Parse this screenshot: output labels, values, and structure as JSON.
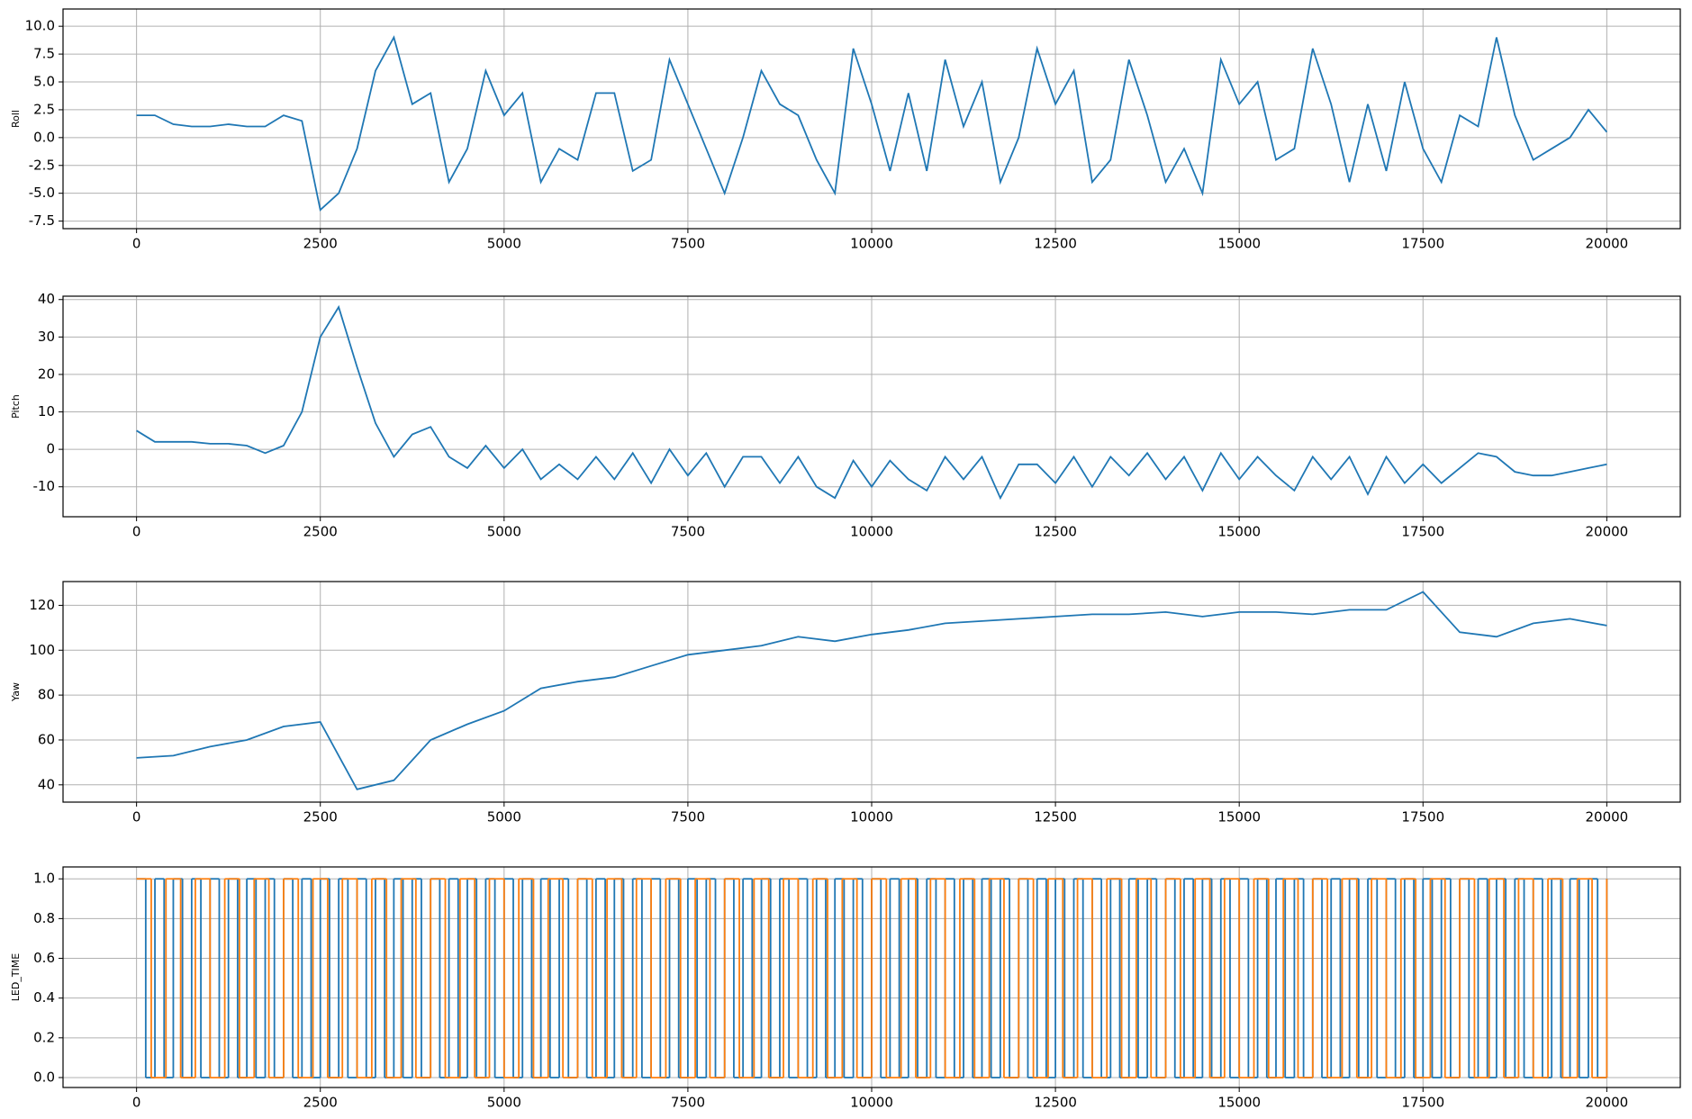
{
  "chart_data": [
    {
      "type": "line",
      "ylabel": "Roll",
      "grid": true,
      "xlim": [
        -1000,
        21000
      ],
      "xticks": [
        0,
        2500,
        5000,
        7500,
        10000,
        12500,
        15000,
        17500,
        20000
      ],
      "ylim": [
        -8.18,
        11.55
      ],
      "yticks": [
        {
          "value": -7.5,
          "label": "-7.5"
        },
        {
          "value": -5,
          "label": "-5.0"
        },
        {
          "value": -2.5,
          "label": "-2.5"
        },
        {
          "value": 0,
          "label": "0.0"
        },
        2.5,
        {
          "value": 5,
          "label": "5.0"
        },
        7.5,
        {
          "value": 10,
          "label": "10.0"
        }
      ],
      "series": [
        {
          "color": "#1f77b4",
          "x": [
            0,
            250,
            500,
            750,
            1000,
            1250,
            1500,
            1750,
            2000,
            2250,
            2500,
            2750,
            3000,
            3250,
            3500,
            3750,
            4000,
            4250,
            4500,
            4750,
            5000,
            5250,
            5500,
            5750,
            6000,
            6250,
            6500,
            6750,
            7000,
            7250,
            7500,
            7750,
            8000,
            8250,
            8500,
            8750,
            9000,
            9250,
            9500,
            9750,
            10000,
            10250,
            10500,
            10750,
            11000,
            11250,
            11500,
            11750,
            12000,
            12250,
            12500,
            12750,
            13000,
            13250,
            13500,
            13750,
            14000,
            14250,
            14500,
            14750,
            15000,
            15250,
            15500,
            15750,
            16000,
            16250,
            16500,
            16750,
            17000,
            17250,
            17500,
            17750,
            18000,
            18250,
            18500,
            18750,
            19000,
            19250,
            19500,
            19750,
            20000
          ],
          "values": [
            2,
            2,
            1.2,
            1,
            1,
            1.2,
            1,
            1,
            2,
            1.5,
            -6.5,
            -5,
            -1,
            6,
            9,
            3,
            4,
            -4,
            -1,
            6,
            2,
            4,
            -4,
            -1,
            -2,
            4,
            4,
            -3,
            -2,
            7,
            3,
            -1,
            -5,
            0,
            6,
            3,
            2,
            -2,
            -5,
            8,
            3,
            -3,
            4,
            -3,
            7,
            1,
            5,
            -4,
            0,
            8,
            3,
            6,
            -4,
            -2,
            7,
            2,
            -4,
            -1,
            -5,
            7,
            3,
            5,
            -2,
            -1,
            8,
            3,
            -4,
            3,
            -3,
            5,
            -1,
            -4,
            2,
            1,
            9,
            2,
            -2,
            -1,
            0,
            2.5,
            0.5
          ]
        }
      ]
    },
    {
      "type": "line",
      "ylabel": "Pitch",
      "grid": true,
      "xlim": [
        -1000,
        21000
      ],
      "xticks": [
        0,
        2500,
        5000,
        7500,
        10000,
        12500,
        15000,
        17500,
        20000
      ],
      "ylim": [
        -18,
        40.9
      ],
      "yticks": [
        -10,
        0,
        10,
        20,
        30,
        40
      ],
      "series": [
        {
          "color": "#1f77b4",
          "x": [
            0,
            250,
            500,
            750,
            1000,
            1250,
            1500,
            1750,
            2000,
            2250,
            2500,
            2750,
            3000,
            3250,
            3500,
            3750,
            4000,
            4250,
            4500,
            4750,
            5000,
            5250,
            5500,
            5750,
            6000,
            6250,
            6500,
            6750,
            7000,
            7250,
            7500,
            7750,
            8000,
            8250,
            8500,
            8750,
            9000,
            9250,
            9500,
            9750,
            10000,
            10250,
            10500,
            10750,
            11000,
            11250,
            11500,
            11750,
            12000,
            12250,
            12500,
            12750,
            13000,
            13250,
            13500,
            13750,
            14000,
            14250,
            14500,
            14750,
            15000,
            15250,
            15500,
            15750,
            16000,
            16250,
            16500,
            16750,
            17000,
            17250,
            17500,
            17750,
            18000,
            18250,
            18500,
            18750,
            19000,
            19250,
            19500,
            19750,
            20000
          ],
          "values": [
            5,
            2,
            2,
            2,
            1.5,
            1.5,
            1,
            -1,
            1,
            10,
            30,
            38,
            22,
            7,
            -2,
            4,
            6,
            -2,
            -5,
            1,
            -5,
            0,
            -8,
            -4,
            -8,
            -2,
            -8,
            -1,
            -9,
            0,
            -7,
            -1,
            -10,
            -2,
            -2,
            -9,
            -2,
            -10,
            -13,
            -3,
            -10,
            -3,
            -8,
            -11,
            -2,
            -8,
            -2,
            -13,
            -4,
            -4,
            -9,
            -2,
            -10,
            -2,
            -7,
            -1,
            -8,
            -2,
            -11,
            -1,
            -8,
            -2,
            -7,
            -11,
            -2,
            -8,
            -2,
            -12,
            -2,
            -9,
            -4,
            -9,
            -5,
            -1,
            -2,
            -6,
            -7,
            -7,
            -6,
            -5,
            -4
          ]
        }
      ]
    },
    {
      "type": "line",
      "ylabel": "Yaw",
      "grid": true,
      "xlim": [
        -1000,
        21000
      ],
      "xticks": [
        0,
        2500,
        5000,
        7500,
        10000,
        12500,
        15000,
        17500,
        20000
      ],
      "ylim": [
        32.3,
        130.6
      ],
      "yticks": [
        40,
        60,
        80,
        100,
        120
      ],
      "series": [
        {
          "color": "#1f77b4",
          "x": [
            0,
            500,
            1000,
            1500,
            2000,
            2500,
            3000,
            3500,
            4000,
            4500,
            5000,
            5500,
            6000,
            6500,
            7000,
            7500,
            8000,
            8500,
            9000,
            9500,
            10000,
            10500,
            11000,
            11500,
            12000,
            12500,
            13000,
            13500,
            14000,
            14500,
            15000,
            15500,
            16000,
            16500,
            17000,
            17500,
            18000,
            18500,
            19000,
            19500,
            20000
          ],
          "values": [
            52,
            53,
            57,
            60,
            66,
            68,
            38,
            42,
            60,
            67,
            73,
            83,
            86,
            88,
            93,
            98,
            100,
            102,
            106,
            104,
            107,
            109,
            112,
            113,
            114,
            115,
            116,
            116,
            117,
            115,
            117,
            117,
            116,
            118,
            118,
            126,
            108,
            106,
            112,
            114,
            111
          ]
        }
      ]
    },
    {
      "type": "step",
      "ylabel": "LED_TIME",
      "grid": true,
      "xlim": [
        -1000,
        21000
      ],
      "xticks": [
        0,
        2500,
        5000,
        7500,
        10000,
        12500,
        15000,
        17500,
        20000
      ],
      "ylim": [
        -0.05,
        1.06
      ],
      "yticks": [
        {
          "value": 0,
          "label": "0.0"
        },
        0.2,
        0.4,
        0.6,
        0.8,
        {
          "value": 1,
          "label": "1.0"
        }
      ],
      "series": [
        {
          "color": "#1f77b4",
          "x": [
            0,
            125,
            250,
            375,
            500,
            625,
            750,
            875,
            1000,
            1125,
            1250,
            1375,
            1500,
            1625,
            1750,
            1875,
            2000,
            2125,
            2250,
            2375,
            2500,
            2625,
            2750,
            2875,
            3000,
            3125,
            3250,
            3375,
            3500,
            3625,
            3750,
            3875,
            4000,
            4125,
            4250,
            4375,
            4500,
            4625,
            4750,
            4875,
            5000,
            5125,
            5250,
            5375,
            5500,
            5625,
            5750,
            5875,
            6000,
            6125,
            6250,
            6375,
            6500,
            6625,
            6750,
            6875,
            7000,
            7125,
            7250,
            7375,
            7500,
            7625,
            7750,
            7875,
            8000,
            8125,
            8250,
            8375,
            8500,
            8625,
            8750,
            8875,
            9000,
            9125,
            9250,
            9375,
            9500,
            9625,
            9750,
            9875,
            10000,
            10125,
            10250,
            10375,
            10500,
            10625,
            10750,
            10875,
            11000,
            11125,
            11250,
            11375,
            11500,
            11625,
            11750,
            11875,
            12000,
            12125,
            12250,
            12375,
            12500,
            12625,
            12750,
            12875,
            13000,
            13125,
            13250,
            13375,
            13500,
            13625,
            13750,
            13875,
            14000,
            14125,
            14250,
            14375,
            14500,
            14625,
            14750,
            14875,
            15000,
            15125,
            15250,
            15375,
            15500,
            15625,
            15750,
            15875,
            16000,
            16125,
            16250,
            16375,
            16500,
            16625,
            16750,
            16875,
            17000,
            17125,
            17250,
            17375,
            17500,
            17625,
            17750,
            17875,
            18000,
            18125,
            18250,
            18375,
            18500,
            18625,
            18750,
            18875,
            19000,
            19125,
            19250,
            19375,
            19500,
            19625,
            19750,
            19875,
            20000
          ],
          "values": [
            1,
            0,
            1,
            0,
            1,
            0,
            1,
            0,
            1,
            0,
            1,
            0,
            1,
            0,
            1,
            0,
            1,
            0,
            1,
            0,
            1,
            0,
            1,
            0,
            1,
            0,
            1,
            0,
            1,
            0,
            1,
            0,
            1,
            0,
            1,
            0,
            1,
            0,
            1,
            0,
            1,
            0,
            1,
            0,
            1,
            0,
            1,
            0,
            1,
            0,
            1,
            0,
            1,
            0,
            1,
            0,
            1,
            0,
            1,
            0,
            1,
            0,
            1,
            0,
            1,
            0,
            1,
            0,
            1,
            0,
            1,
            0,
            1,
            0,
            1,
            0,
            1,
            0,
            1,
            0,
            1,
            0,
            1,
            0,
            1,
            0,
            1,
            0,
            1,
            0,
            1,
            0,
            1,
            0,
            1,
            0,
            1,
            0,
            1,
            0,
            1,
            0,
            1,
            0,
            1,
            0,
            1,
            0,
            1,
            0,
            1,
            0,
            1,
            0,
            1,
            0,
            1,
            0,
            1,
            0,
            1,
            0,
            1,
            0,
            1,
            0,
            1,
            0,
            1,
            0,
            1,
            0,
            1,
            0,
            1,
            0,
            1,
            0,
            1,
            0,
            1,
            0,
            1,
            0,
            1,
            0,
            1,
            0,
            1,
            0,
            1,
            0,
            1,
            0,
            1,
            0,
            1,
            0,
            1,
            0,
            1
          ]
        },
        {
          "color": "#ff7f0e",
          "x": [
            0,
            200,
            400,
            600,
            800,
            1000,
            1200,
            1400,
            1600,
            1800,
            2000,
            2200,
            2400,
            2600,
            2800,
            3000,
            3200,
            3400,
            3600,
            3800,
            4000,
            4200,
            4400,
            4600,
            4800,
            5000,
            5200,
            5400,
            5600,
            5800,
            6000,
            6200,
            6400,
            6600,
            6800,
            7000,
            7200,
            7400,
            7600,
            7800,
            8000,
            8200,
            8400,
            8600,
            8800,
            9000,
            9200,
            9400,
            9600,
            9800,
            10000,
            10200,
            10400,
            10600,
            10800,
            11000,
            11200,
            11400,
            11600,
            11800,
            12000,
            12200,
            12400,
            12600,
            12800,
            13000,
            13200,
            13400,
            13600,
            13800,
            14000,
            14200,
            14400,
            14600,
            14800,
            15000,
            15200,
            15400,
            15600,
            15800,
            16000,
            16200,
            16400,
            16600,
            16800,
            17000,
            17200,
            17400,
            17600,
            17800,
            18000,
            18200,
            18400,
            18600,
            18800,
            19000,
            19200,
            19400,
            19600,
            19800,
            20000
          ],
          "values": [
            1,
            0,
            1,
            0,
            1,
            0,
            1,
            0,
            1,
            0,
            1,
            0,
            1,
            0,
            1,
            0,
            1,
            0,
            1,
            0,
            1,
            0,
            1,
            0,
            1,
            0,
            1,
            0,
            1,
            0,
            1,
            0,
            1,
            0,
            1,
            0,
            1,
            0,
            1,
            0,
            1,
            0,
            1,
            0,
            1,
            0,
            1,
            0,
            1,
            0,
            1,
            0,
            1,
            0,
            1,
            0,
            1,
            0,
            1,
            0,
            1,
            0,
            1,
            0,
            1,
            0,
            1,
            0,
            1,
            0,
            1,
            0,
            1,
            0,
            1,
            0,
            1,
            0,
            1,
            0,
            1,
            0,
            1,
            0,
            1,
            0,
            1,
            0,
            1,
            0,
            1,
            0,
            1,
            0,
            1,
            0,
            1,
            0,
            1,
            0,
            1
          ]
        }
      ]
    }
  ]
}
